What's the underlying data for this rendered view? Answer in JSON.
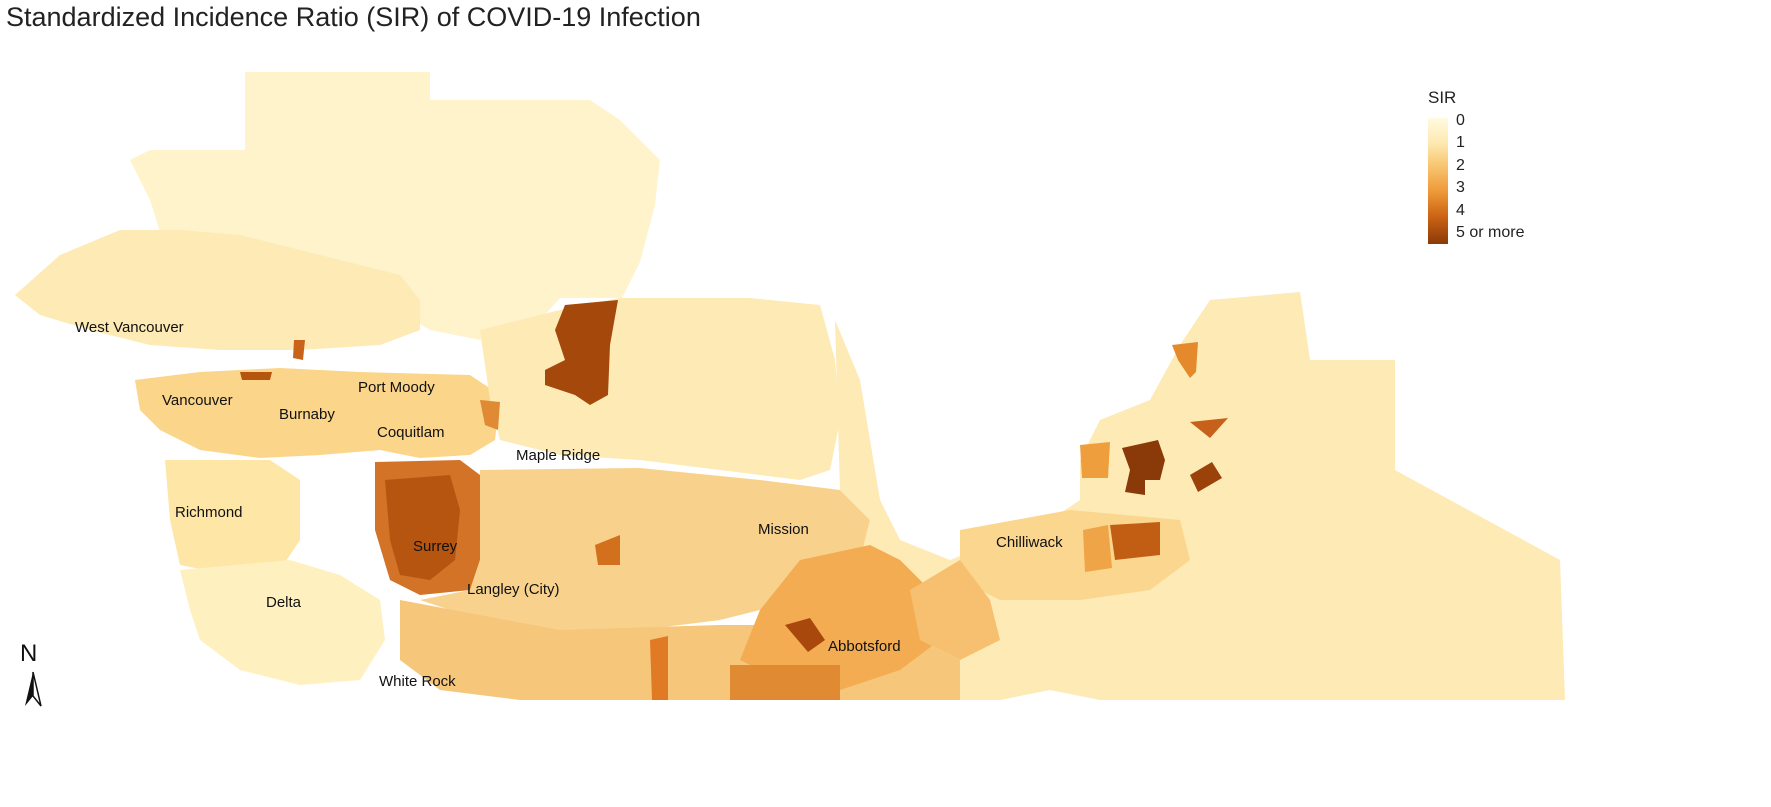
{
  "title": "Standardized Incidence Ratio (SIR) of COVID-19 Infection",
  "legend": {
    "title": "SIR",
    "labels": [
      "0",
      "1",
      "2",
      "3",
      "4",
      "5 or more"
    ],
    "colors": [
      "#fffbe0",
      "#fde9b0",
      "#f8c570",
      "#ee9a3a",
      "#cc6414",
      "#8a3a08"
    ]
  },
  "places": [
    {
      "key": "west-vancouver",
      "name": "West Vancouver"
    },
    {
      "key": "vancouver",
      "name": "Vancouver"
    },
    {
      "key": "burnaby",
      "name": "Burnaby"
    },
    {
      "key": "port-moody",
      "name": "Port Moody"
    },
    {
      "key": "coquitlam",
      "name": "Coquitlam"
    },
    {
      "key": "maple-ridge",
      "name": "Maple Ridge"
    },
    {
      "key": "richmond",
      "name": "Richmond"
    },
    {
      "key": "surrey",
      "name": "Surrey"
    },
    {
      "key": "langley-city",
      "name": "Langley (City)"
    },
    {
      "key": "delta",
      "name": "Delta"
    },
    {
      "key": "mission",
      "name": "Mission"
    },
    {
      "key": "chilliwack",
      "name": "Chilliwack"
    },
    {
      "key": "abbotsford",
      "name": "Abbotsford"
    },
    {
      "key": "white-rock",
      "name": "White Rock"
    }
  ],
  "north_arrow": {
    "label": "N"
  }
}
